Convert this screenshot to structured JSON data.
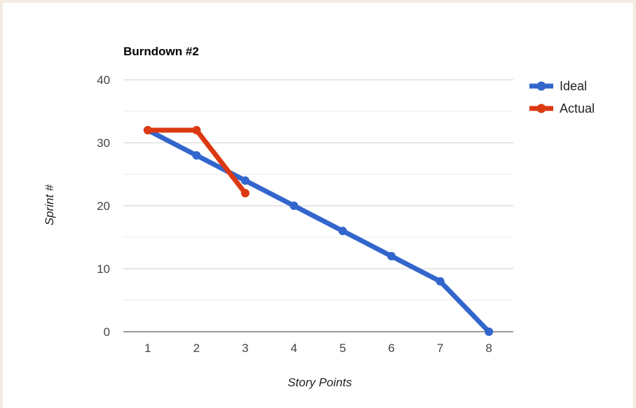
{
  "chart_data": {
    "type": "line",
    "title": "Burndown #2",
    "xlabel": "Story Points",
    "ylabel": "Sprint #",
    "x": [
      1,
      2,
      3,
      4,
      5,
      6,
      7,
      8
    ],
    "x_tick_labels": [
      "1",
      "2",
      "3",
      "4",
      "5",
      "6",
      "7",
      "8"
    ],
    "y_tick_labels": [
      "0",
      "10",
      "20",
      "30",
      "40"
    ],
    "ylim": [
      0,
      40
    ],
    "grid": true,
    "legend_position": "right",
    "series": [
      {
        "name": "Ideal",
        "color": "#3366cc",
        "x": [
          1,
          2,
          3,
          4,
          5,
          6,
          7,
          8
        ],
        "values": [
          32,
          28,
          24,
          20,
          16,
          12,
          8,
          0
        ]
      },
      {
        "name": "Actual",
        "color": "#dc3912",
        "x": [
          1,
          2,
          3
        ],
        "values": [
          32,
          32,
          22
        ]
      }
    ]
  }
}
